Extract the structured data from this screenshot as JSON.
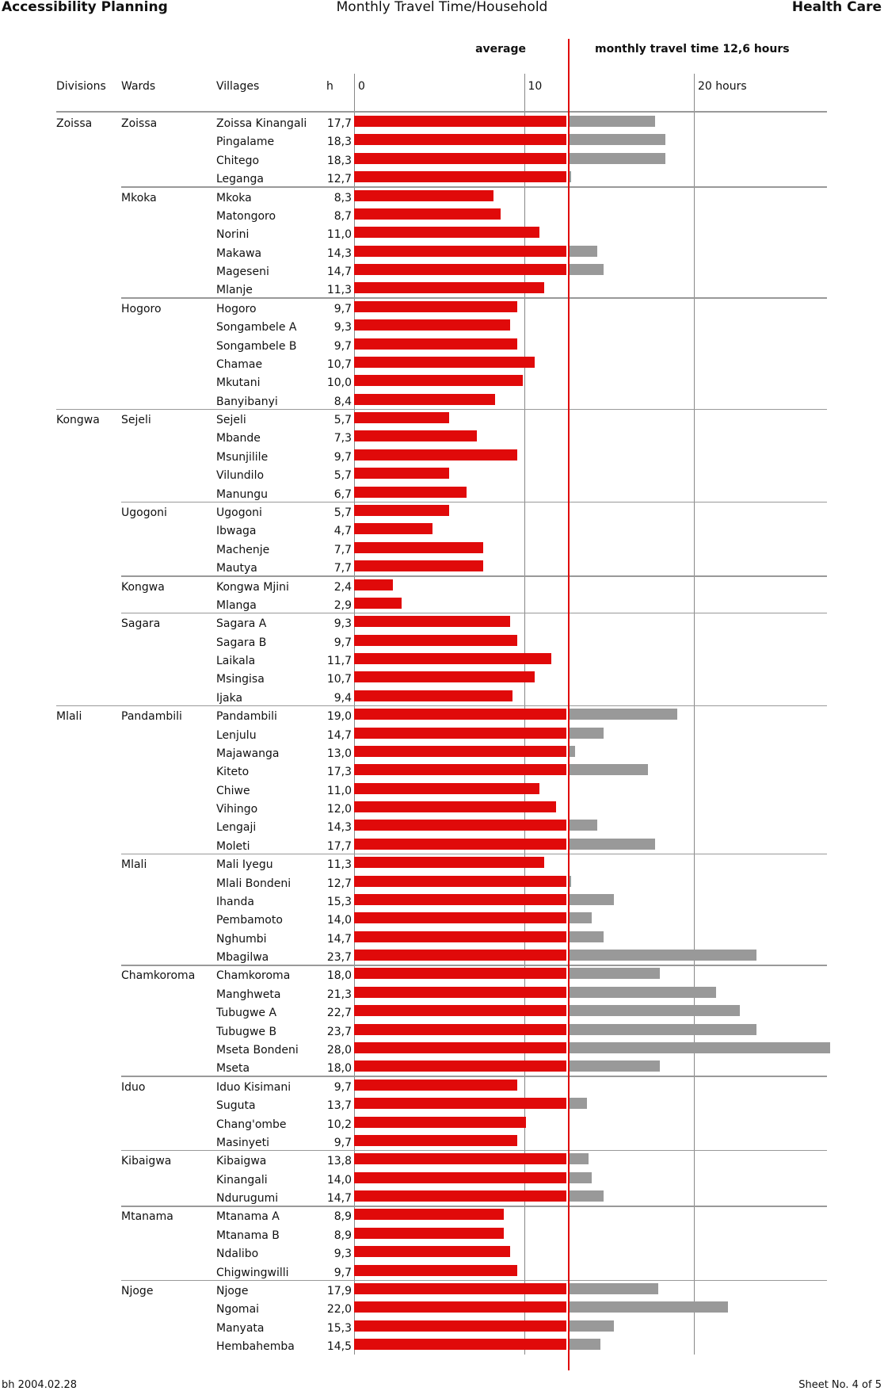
{
  "header": {
    "left_title": "Accessibility Planning",
    "center_title": "Monthly Travel Time/Household",
    "right_title": "Health Care",
    "average_label": "average",
    "average_text": "monthly travel time 12,6 hours"
  },
  "columns": {
    "divisions": "Divisions",
    "wards": "Wards",
    "villages": "Villages",
    "h": "h"
  },
  "footer": {
    "left": "bh 2004.02.28",
    "right": "Sheet No. 4 of 5"
  },
  "colors": {
    "below_average": "#e00a0a",
    "above_average": "#999999",
    "average_line": "#e00a0a"
  },
  "chart_data": {
    "type": "bar",
    "orientation": "horizontal",
    "average": 12.6,
    "xlim": [
      0,
      28
    ],
    "x_ticks": [
      "0",
      "10",
      "20 hours"
    ],
    "x_tick_values": [
      0,
      10,
      20
    ],
    "divisions": [
      {
        "name": "Zoissa",
        "wards": [
          {
            "name": "Zoissa",
            "villages": [
              [
                "Zoissa Kinangali",
                17.7
              ],
              [
                "Pingalame",
                18.3
              ],
              [
                "Chitego",
                18.3
              ],
              [
                "Leganga",
                12.7
              ]
            ]
          },
          {
            "name": "Mkoka",
            "villages": [
              [
                "Mkoka",
                8.3
              ],
              [
                "Matongoro",
                8.7
              ],
              [
                "Norini",
                11.0
              ],
              [
                "Makawa",
                14.3
              ],
              [
                "Mageseni",
                14.7
              ],
              [
                "Mlanje",
                11.3
              ]
            ]
          },
          {
            "name": "Hogoro",
            "villages": [
              [
                "Hogoro",
                9.7
              ],
              [
                "Songambele A",
                9.3
              ],
              [
                "Songambele B",
                9.7
              ],
              [
                "Chamae",
                10.7
              ],
              [
                "Mkutani",
                10.0
              ],
              [
                "Banyibanyi",
                8.4
              ]
            ]
          }
        ]
      },
      {
        "name": "Kongwa",
        "wards": [
          {
            "name": "Sejeli",
            "villages": [
              [
                "Sejeli",
                5.7
              ],
              [
                "Mbande",
                7.3
              ],
              [
                "Msunjilile",
                9.7
              ],
              [
                "Vilundilo",
                5.7
              ],
              [
                "Manungu",
                6.7
              ]
            ]
          },
          {
            "name": "Ugogoni",
            "villages": [
              [
                "Ugogoni",
                5.7
              ],
              [
                "Ibwaga",
                4.7
              ],
              [
                "Machenje",
                7.7
              ],
              [
                "Mautya",
                7.7
              ]
            ]
          },
          {
            "name": "Kongwa",
            "villages": [
              [
                "Kongwa Mjini",
                2.4
              ],
              [
                "Mlanga",
                2.9
              ]
            ]
          },
          {
            "name": "Sagara",
            "villages": [
              [
                "Sagara A",
                9.3
              ],
              [
                "Sagara B",
                9.7
              ],
              [
                "Laikala",
                11.7
              ],
              [
                "Msingisa",
                10.7
              ],
              [
                "Ijaka",
                9.4
              ]
            ]
          }
        ]
      },
      {
        "name": "Mlali",
        "wards": [
          {
            "name": "Pandambili",
            "villages": [
              [
                "Pandambili",
                19.0
              ],
              [
                "Lenjulu",
                14.7
              ],
              [
                "Majawanga",
                13.0
              ],
              [
                "Kiteto",
                17.3
              ],
              [
                "Chiwe",
                11.0
              ],
              [
                "Vihingo",
                12.0
              ],
              [
                "Lengaji",
                14.3
              ],
              [
                "Moleti",
                17.7
              ]
            ]
          },
          {
            "name": "Mlali",
            "villages": [
              [
                "Mali Iyegu",
                11.3
              ],
              [
                "Mlali Bondeni",
                12.7
              ],
              [
                "Ihanda",
                15.3
              ],
              [
                "Pembamoto",
                14.0
              ],
              [
                "Nghumbi",
                14.7
              ],
              [
                "Mbagilwa",
                23.7
              ]
            ]
          },
          {
            "name": "Chamkoroma",
            "villages": [
              [
                "Chamkoroma",
                18.0
              ],
              [
                "Manghweta",
                21.3
              ],
              [
                "Tubugwe A",
                22.7
              ],
              [
                "Tubugwe B",
                23.7
              ],
              [
                "Mseta Bondeni",
                28.0
              ],
              [
                "Mseta",
                18.0
              ]
            ]
          },
          {
            "name": "Iduo",
            "villages": [
              [
                "Iduo Kisimani",
                9.7
              ],
              [
                "Suguta",
                13.7
              ],
              [
                "Chang'ombe",
                10.2
              ],
              [
                "Masinyeti",
                9.7
              ]
            ]
          },
          {
            "name": "Kibaigwa",
            "villages": [
              [
                "Kibaigwa",
                13.8
              ],
              [
                "Kinangali",
                14.0
              ],
              [
                "Ndurugumi",
                14.7
              ]
            ]
          },
          {
            "name": "Mtanama",
            "villages": [
              [
                "Mtanama A",
                8.9
              ],
              [
                "Mtanama B",
                8.9
              ],
              [
                "Ndalibo",
                9.3
              ],
              [
                "Chigwingwilli",
                9.7
              ]
            ]
          },
          {
            "name": "Njoge",
            "villages": [
              [
                "Njoge",
                17.9
              ],
              [
                "Ngomai",
                22.0
              ],
              [
                "Manyata",
                15.3
              ],
              [
                "Hembahemba",
                14.5
              ]
            ]
          }
        ]
      }
    ]
  }
}
